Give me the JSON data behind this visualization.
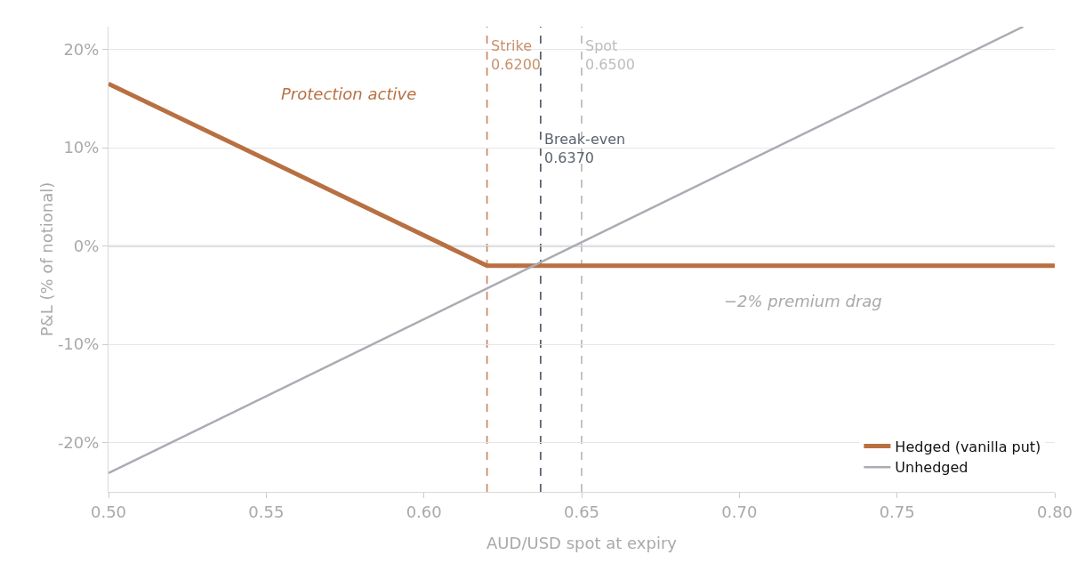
{
  "chart_data": {
    "type": "line",
    "xlabel": "AUD/USD spot at expiry",
    "ylabel": "P&L (% of notional)",
    "series": [
      {
        "name": "Hedged (vanilla put)",
        "color": "#b87042",
        "x": [
          0.5,
          0.62,
          0.8
        ],
        "values": [
          16.5,
          -2,
          -2
        ]
      },
      {
        "name": "Unhedged",
        "color": "#a9adb3",
        "x": [
          0.5,
          0.79
        ],
        "values": [
          -23.1,
          22.3
        ]
      }
    ],
    "xlim": [
      0.5,
      0.8
    ],
    "xticks": [
      {
        "value": 0.5,
        "label": "0.50"
      },
      {
        "value": 0.55,
        "label": "0.55"
      },
      {
        "value": 0.6,
        "label": "0.60"
      },
      {
        "value": 0.65,
        "label": "0.65"
      },
      {
        "value": 0.7,
        "label": "0.70"
      },
      {
        "value": 0.75,
        "label": "0.75"
      },
      {
        "value": 0.8,
        "label": "0.80"
      }
    ],
    "ylim": [
      -25,
      22.3
    ],
    "yticks": [
      {
        "value": -20,
        "label": "-20%"
      },
      {
        "value": -10,
        "label": "-10%"
      },
      {
        "value": 0,
        "label": "0%"
      },
      {
        "value": 10,
        "label": "10%"
      },
      {
        "value": 20,
        "label": "20%"
      }
    ],
    "ref_lines": [
      {
        "axis": "y",
        "value": 0,
        "label": null,
        "color": "#b4b8be",
        "line_style": "solid"
      },
      {
        "axis": "x",
        "value": 0.62,
        "label": "Strike\n0.6200",
        "color": "#c8906a",
        "line_style": "dashed"
      },
      {
        "axis": "x",
        "value": 0.637,
        "label": "Break-even\n0.6370",
        "color": "#5b6470",
        "line_style": "dashed"
      },
      {
        "axis": "x",
        "value": 0.65,
        "label": "Spot\n0.6500",
        "color": "#bdbdbd",
        "line_style": "dashed"
      }
    ],
    "annotations": [
      "Protection active",
      "−2% premium drag"
    ],
    "grid": "y",
    "legend": "bottom right",
    "marker": "none",
    "line_style": "solid"
  }
}
